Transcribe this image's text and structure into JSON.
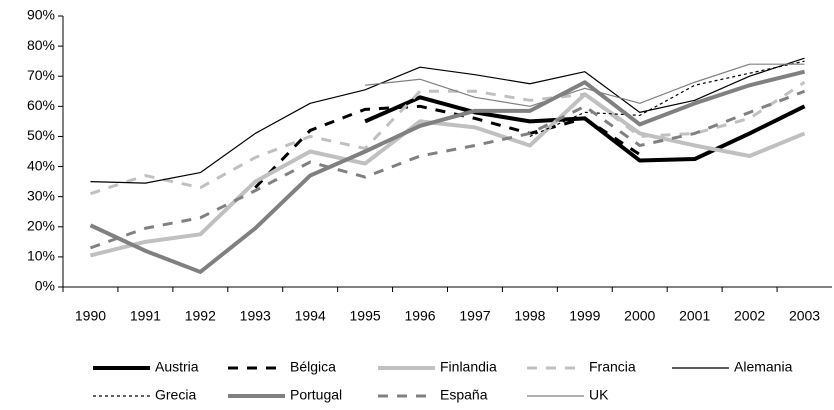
{
  "chart_data": {
    "type": "line",
    "categories": [
      "1990",
      "1991",
      "1992",
      "1993",
      "1994",
      "1995",
      "1996",
      "1997",
      "1998",
      "1999",
      "2000",
      "2001",
      "2002",
      "2003"
    ],
    "ylim": [
      0,
      90
    ],
    "yticks": [
      {
        "value": 0,
        "label": "0%"
      },
      {
        "value": 10,
        "label": "10%"
      },
      {
        "value": 20,
        "label": "20%"
      },
      {
        "value": 30,
        "label": "30%"
      },
      {
        "value": 40,
        "label": "40%"
      },
      {
        "value": 50,
        "label": "50%"
      },
      {
        "value": 60,
        "label": "60%"
      },
      {
        "value": 70,
        "label": "70%"
      },
      {
        "value": 80,
        "label": "80%"
      },
      {
        "value": 90,
        "label": "90%"
      }
    ],
    "grid": false,
    "legend": "bottom",
    "series": [
      {
        "name": "Austria",
        "color": "#000000",
        "width": 4,
        "dash": "solid",
        "values": [
          null,
          null,
          null,
          null,
          null,
          55,
          63,
          58,
          55,
          56,
          42,
          42.5,
          51,
          60
        ]
      },
      {
        "name": "Bélgica",
        "color": "#000000",
        "width": 3,
        "dash": "dashed",
        "values": [
          null,
          null,
          null,
          33,
          52,
          59,
          60,
          56,
          51,
          56,
          44,
          null,
          null,
          null
        ]
      },
      {
        "name": "Finlandia",
        "color": "#c0c0c0",
        "width": 4,
        "dash": "solid",
        "values": [
          10.5,
          15,
          17.5,
          35,
          45,
          41,
          55,
          53,
          47,
          64,
          51,
          47,
          43.5,
          51
        ]
      },
      {
        "name": "Francia",
        "color": "#c0c0c0",
        "width": 3,
        "dash": "dashed",
        "values": [
          31,
          37,
          33,
          43,
          50,
          46,
          65,
          65,
          62,
          64,
          50,
          51,
          56,
          68
        ]
      },
      {
        "name": "Alemania",
        "color": "#000000",
        "width": 1.2,
        "dash": "solid",
        "values": [
          35,
          34.5,
          38,
          51,
          61,
          65.5,
          73,
          70.5,
          67.5,
          71.5,
          58,
          62,
          70,
          76
        ]
      },
      {
        "name": "Grecia",
        "color": "#000000",
        "width": 1.2,
        "dash": "dotted",
        "values": [
          null,
          null,
          null,
          null,
          null,
          null,
          null,
          null,
          50,
          58,
          57,
          67,
          71,
          75
        ]
      },
      {
        "name": "Portugal",
        "color": "#808080",
        "width": 4,
        "dash": "solid",
        "values": [
          20.5,
          12,
          5,
          19.5,
          37,
          45,
          53.5,
          58.5,
          58.5,
          68,
          54,
          61,
          67,
          71.5
        ]
      },
      {
        "name": "España",
        "color": "#808080",
        "width": 3,
        "dash": "dashed",
        "values": [
          13,
          19.5,
          23,
          32,
          41.5,
          36.5,
          43.5,
          47,
          51,
          60,
          47,
          51,
          58,
          65
        ]
      },
      {
        "name": "UK",
        "color": "#808080",
        "width": 1.2,
        "dash": "solid",
        "values": [
          null,
          null,
          null,
          null,
          null,
          67,
          69,
          63,
          60,
          66,
          61,
          68,
          74,
          74
        ]
      }
    ]
  }
}
